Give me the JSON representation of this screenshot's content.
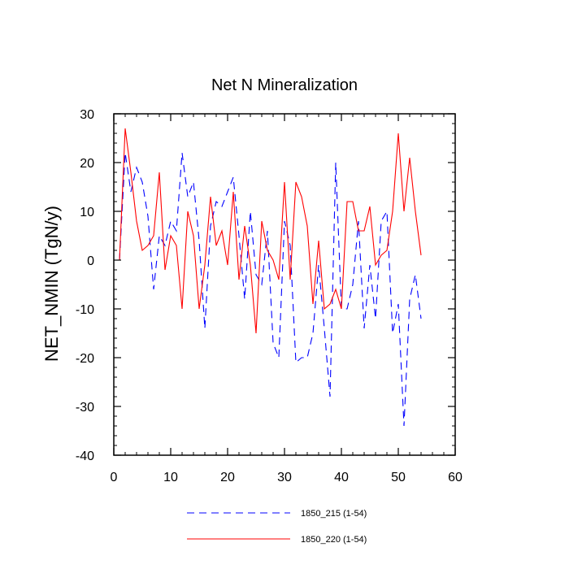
{
  "chart_data": {
    "type": "line",
    "title": "Net N Mineralization",
    "xlabel": "",
    "ylabel": "NET_NMIN  (TgN/y)",
    "xlim": [
      0,
      60
    ],
    "ylim": [
      -40,
      30
    ],
    "x_ticks": [
      0,
      10,
      20,
      30,
      40,
      50,
      60
    ],
    "y_ticks": [
      30,
      20,
      10,
      0,
      -10,
      -20,
      -30,
      -40
    ],
    "x_tick_labels": [
      "0",
      "10",
      "20",
      "30",
      "40",
      "50",
      "60"
    ],
    "y_tick_labels": [
      "30",
      "20",
      "10",
      "0",
      "-10",
      "-20",
      "-30",
      "-40"
    ],
    "legend_position": "bottom",
    "series": [
      {
        "name": "1850_215 (1-54)",
        "color": "#0000ff",
        "style": "dashed",
        "x": [
          1,
          2,
          3,
          4,
          5,
          6,
          7,
          8,
          9,
          10,
          11,
          12,
          13,
          14,
          15,
          16,
          17,
          18,
          19,
          20,
          21,
          22,
          23,
          24,
          25,
          26,
          27,
          28,
          29,
          30,
          31,
          32,
          33,
          34,
          35,
          36,
          37,
          38,
          39,
          40,
          41,
          42,
          43,
          44,
          45,
          46,
          47,
          48,
          49,
          50,
          51,
          52,
          53,
          54
        ],
        "values": [
          0,
          22,
          14,
          19,
          16,
          9,
          -6,
          5,
          3,
          8,
          6,
          22,
          13,
          16,
          4,
          -14,
          7,
          12,
          11,
          14,
          17,
          5,
          -8,
          10,
          -3,
          -5,
          6,
          -17,
          -20,
          8,
          3,
          -21,
          -20,
          -20,
          -15,
          -1,
          -14,
          -28,
          20,
          -10,
          -10,
          -5,
          8,
          -14,
          -1,
          -12,
          8,
          10,
          -15,
          -9,
          -34,
          -8,
          -3,
          -12
        ]
      },
      {
        "name": "1850_220 (1-54)",
        "color": "#ff0000",
        "style": "solid",
        "x": [
          1,
          2,
          3,
          4,
          5,
          6,
          7,
          8,
          9,
          10,
          11,
          12,
          13,
          14,
          15,
          16,
          17,
          18,
          19,
          20,
          21,
          22,
          23,
          24,
          25,
          26,
          27,
          28,
          29,
          30,
          31,
          32,
          33,
          34,
          35,
          36,
          37,
          38,
          39,
          40,
          41,
          42,
          43,
          44,
          45,
          46,
          47,
          48,
          49,
          50,
          51,
          52,
          53,
          54
        ],
        "values": [
          0,
          27,
          18,
          8,
          2,
          3,
          5,
          18,
          -2,
          5,
          3,
          -10,
          10,
          5,
          -10,
          -1,
          13,
          3,
          6,
          -1,
          14,
          -4,
          7,
          -1,
          -15,
          8,
          2,
          0,
          -4,
          16,
          -4,
          16,
          13,
          7,
          -9,
          4,
          -10,
          -9,
          -6,
          -10,
          12,
          12,
          6,
          6,
          11,
          -1,
          1,
          2,
          10,
          26,
          10,
          21,
          10,
          1
        ]
      }
    ]
  }
}
